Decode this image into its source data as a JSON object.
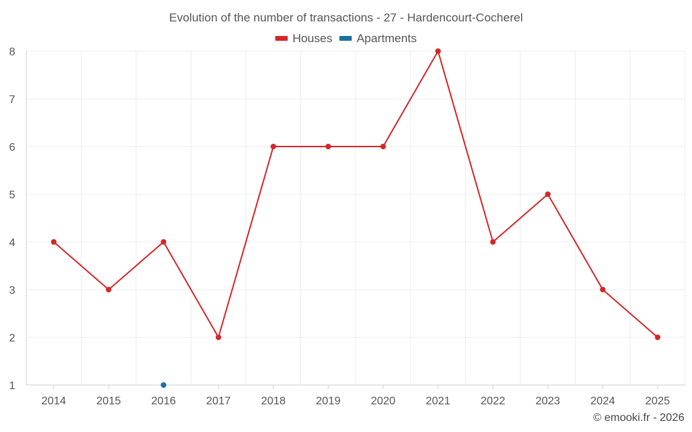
{
  "chart_data": {
    "type": "line",
    "title": "Evolution of the number of transactions - 27 - Hardencourt-Cocherel",
    "categories": [
      "2014",
      "2015",
      "2016",
      "2017",
      "2018",
      "2019",
      "2020",
      "2021",
      "2022",
      "2023",
      "2024",
      "2025"
    ],
    "series": [
      {
        "name": "Houses",
        "color": "#d62728",
        "values": [
          4,
          3,
          4,
          2,
          6,
          6,
          6,
          8,
          4,
          5,
          3,
          2
        ]
      },
      {
        "name": "Apartments",
        "color": "#1f6f9f",
        "values": [
          null,
          null,
          1,
          null,
          null,
          null,
          null,
          null,
          null,
          null,
          null,
          null
        ]
      }
    ],
    "y_ticks": [
      "1",
      "2",
      "3",
      "4",
      "5",
      "6",
      "7",
      "8"
    ],
    "ylim": [
      1,
      8
    ],
    "grid": true,
    "legend_position": "top-center"
  },
  "credit": "© emooki.fr - 2026"
}
